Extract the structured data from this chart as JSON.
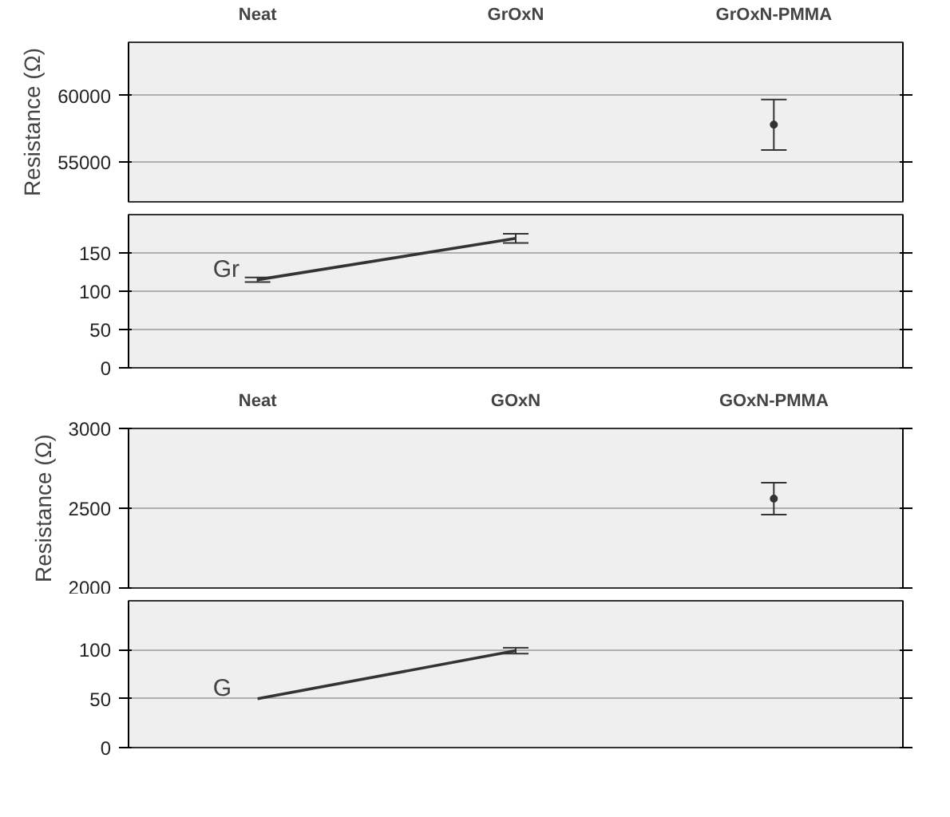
{
  "chart_data": [
    {
      "type": "line",
      "categories": [
        "Neat",
        "GrOxN",
        "GrOxN-PMMA"
      ],
      "series": [
        {
          "color": "#333333",
          "marker": "circle",
          "values": [
            null,
            null,
            57800
          ],
          "errors": [
            null,
            null,
            1900
          ]
        }
      ],
      "ylim": [
        52000,
        64000
      ],
      "yticks": [
        55000,
        60000
      ],
      "ylabel": "Resistance (Ω)",
      "grid": "y",
      "line_style": "solid"
    },
    {
      "type": "line",
      "categories": [
        null,
        null,
        null
      ],
      "series": [
        {
          "color": "#333333",
          "values": [
            115,
            169,
            null
          ],
          "errors": [
            3,
            6,
            null
          ]
        }
      ],
      "ylim": [
        0,
        200
      ],
      "yticks": [
        0,
        50,
        100,
        150
      ],
      "grid": "y",
      "line_style": "solid",
      "tick_labels": "y",
      "annotations": [
        "Gr"
      ]
    },
    {
      "type": "line",
      "categories": [
        "Neat",
        "GOxN",
        "GOxN-PMMA"
      ],
      "series": [
        {
          "color": "#333333",
          "marker": "circle",
          "values": [
            null,
            null,
            2560
          ],
          "errors": [
            null,
            null,
            100
          ]
        }
      ],
      "ylim": [
        2000,
        3000
      ],
      "yticks": [
        2000,
        2500,
        3000
      ],
      "ylabel": "Resistance (Ω)",
      "grid": "y",
      "line_style": "solid"
    },
    {
      "type": "line",
      "categories": [
        null,
        null,
        null
      ],
      "series": [
        {
          "color": "#333333",
          "values": [
            50,
            99,
            null
          ],
          "errors": [
            null,
            3,
            null
          ]
        }
      ],
      "ylim": [
        0,
        150
      ],
      "yticks": [
        0,
        50,
        100
      ],
      "grid": "y",
      "line_style": "solid",
      "tick_labels": "y",
      "annotations": [
        "G"
      ]
    }
  ]
}
